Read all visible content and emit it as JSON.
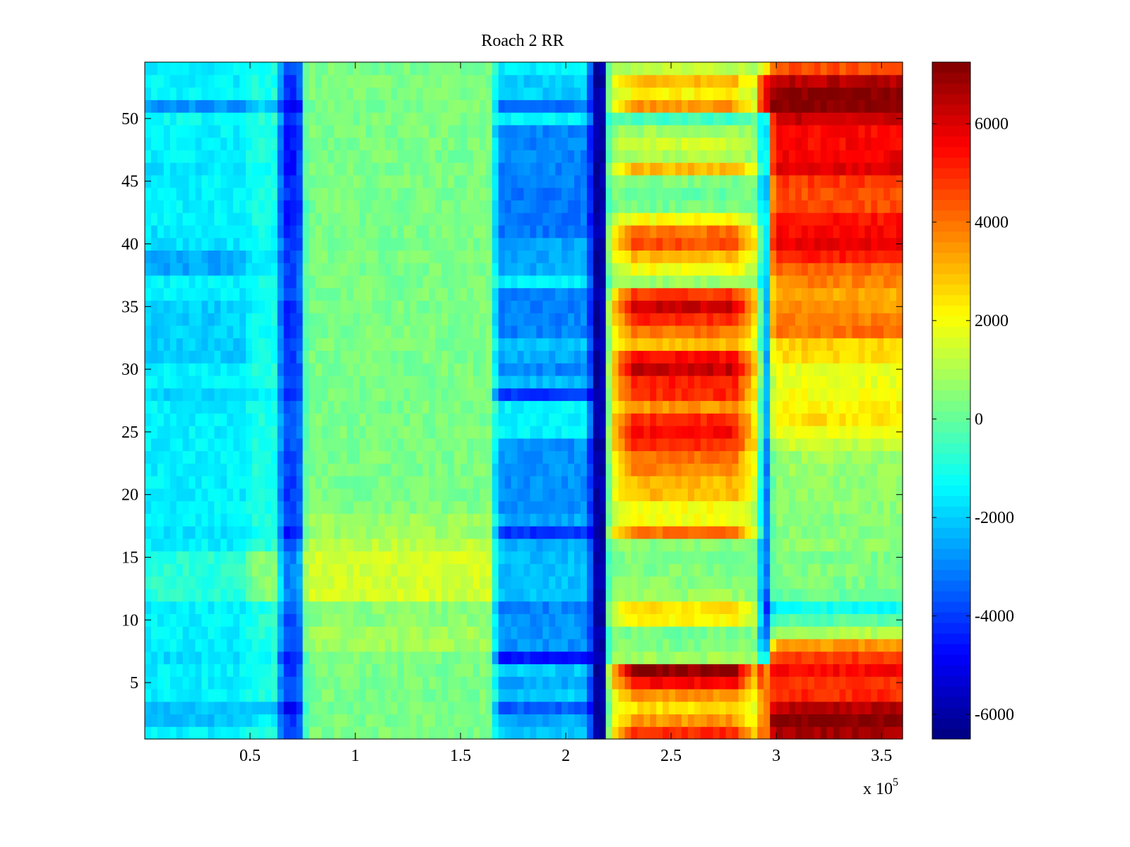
{
  "chart_data": {
    "type": "heatmap",
    "title": "Roach 2 RR",
    "xlabel": "",
    "ylabel": "",
    "x_multiplier": "x 10",
    "x_exponent": "5",
    "xlim": [
      0,
      3.6
    ],
    "ylim": [
      0.5,
      54.5
    ],
    "clim": [
      -6500,
      7250
    ],
    "colormap": "jet",
    "x_ticks": [
      0.5,
      1,
      1.5,
      2,
      2.5,
      3,
      3.5
    ],
    "x_tick_labels": [
      "0.5",
      "1",
      "1.5",
      "2",
      "2.5",
      "3",
      "3.5"
    ],
    "y_ticks": [
      5,
      10,
      15,
      20,
      25,
      30,
      35,
      40,
      45,
      50
    ],
    "y_tick_labels": [
      "5",
      "10",
      "15",
      "20",
      "25",
      "30",
      "35",
      "40",
      "45",
      "50"
    ],
    "colorbar_ticks": [
      -6000,
      -4000,
      -2000,
      0,
      2000,
      4000,
      6000
    ],
    "colorbar_tick_labels": [
      "-6000",
      "-4000",
      "-2000",
      "0",
      "2000",
      "4000",
      "6000"
    ],
    "rows": 54,
    "x_segments_1e5": [
      {
        "name": "left",
        "from": 0,
        "to": 0.49
      },
      {
        "name": "light",
        "from": 0.49,
        "to": 0.64
      },
      {
        "name": "band1",
        "from": 0.64,
        "to": 0.75
      },
      {
        "name": "mid",
        "from": 0.75,
        "to": 1.66
      },
      {
        "name": "pre",
        "from": 1.66,
        "to": 2.12
      },
      {
        "name": "band2",
        "from": 2.12,
        "to": 2.2
      },
      {
        "name": "warm",
        "from": 2.2,
        "to": 2.92
      },
      {
        "name": "band3",
        "from": 2.92,
        "to": 2.97
      },
      {
        "name": "right",
        "from": 2.97,
        "to": 3.6
      }
    ],
    "row_values": {
      "left": [
        -1500,
        -2200,
        -2200,
        -1500,
        -1500,
        -1500,
        -1800,
        -1500,
        -1500,
        -1500,
        -1500,
        -800,
        -800,
        -800,
        -800,
        -1500,
        -1700,
        -1500,
        -1500,
        -1500,
        -1500,
        -1500,
        -1500,
        -1500,
        -1500,
        -1500,
        -1500,
        -2000,
        -1500,
        -1500,
        -2000,
        -2000,
        -2000,
        -2000,
        -2000,
        -1500,
        -1500,
        -2500,
        -2500,
        -1700,
        -1700,
        -1500,
        -1500,
        -1500,
        -1500,
        -1700,
        -1500,
        -1500,
        -1500,
        -1300,
        -2800,
        -1500,
        -1500,
        -1500
      ],
      "light": [
        -1000,
        -1500,
        -2200,
        -1000,
        -1000,
        -1000,
        -1200,
        -1000,
        -800,
        -800,
        -1000,
        500,
        500,
        500,
        500,
        -800,
        -1200,
        -1000,
        -1000,
        -1000,
        -1000,
        -1000,
        -1000,
        -1000,
        -1000,
        -1000,
        -1000,
        -1500,
        -1000,
        -1000,
        -1200,
        -1200,
        -1200,
        -1200,
        -1200,
        -1000,
        -1000,
        -1500,
        -1500,
        -1200,
        -1200,
        -1000,
        -1000,
        -1000,
        -1000,
        -1200,
        -1000,
        -1000,
        -1000,
        -800,
        -2000,
        -1000,
        -1000,
        -1000
      ],
      "band1": [
        -4000,
        -4000,
        -5200,
        -4000,
        -4000,
        -4000,
        -4500,
        -3800,
        -3800,
        -3800,
        -3500,
        -3000,
        -3000,
        -3000,
        -3000,
        -3500,
        -4500,
        -3800,
        -3800,
        -4000,
        -4000,
        -3800,
        -3800,
        -3800,
        -3500,
        -3500,
        -3800,
        -4500,
        -4000,
        -4200,
        -4000,
        -4000,
        -4200,
        -4200,
        -4200,
        -4000,
        -3800,
        -4000,
        -4000,
        -4200,
        -4500,
        -4500,
        -4500,
        -4200,
        -4200,
        -4500,
        -4500,
        -4500,
        -4500,
        -4000,
        -5000,
        -4200,
        -4000,
        -3800
      ],
      "mid": [
        300,
        300,
        300,
        300,
        300,
        300,
        300,
        800,
        800,
        500,
        500,
        1500,
        1500,
        1500,
        1500,
        1200,
        800,
        800,
        400,
        300,
        300,
        300,
        300,
        300,
        300,
        300,
        300,
        300,
        300,
        300,
        300,
        300,
        300,
        300,
        300,
        300,
        300,
        300,
        300,
        300,
        300,
        300,
        300,
        300,
        300,
        300,
        300,
        300,
        300,
        300,
        300,
        300,
        300,
        300
      ],
      "pre": [
        -2000,
        -2500,
        -3500,
        -2000,
        -2500,
        -2000,
        -4500,
        -2800,
        -2800,
        -2800,
        -3000,
        -2200,
        -2200,
        -2200,
        -2200,
        -2500,
        -4200,
        -2500,
        -2800,
        -2800,
        -2800,
        -2800,
        -2800,
        -2800,
        -1500,
        -1500,
        -1500,
        -4000,
        -2200,
        -3000,
        -2500,
        -2200,
        -3000,
        -3000,
        -3000,
        -3000,
        -1500,
        -2500,
        -2500,
        -2500,
        -3200,
        -3200,
        -3200,
        -3200,
        -3000,
        -3000,
        -3000,
        -3000,
        -3000,
        -1500,
        -3200,
        -2000,
        -2000,
        -1500
      ],
      "band2": [
        -6000,
        -6000,
        -6000,
        -6000,
        -6000,
        -6000,
        -6000,
        -6000,
        -6000,
        -6000,
        -6000,
        -6000,
        -6000,
        -6000,
        -6000,
        -6000,
        -6000,
        -6000,
        -6000,
        -6000,
        -6000,
        -6000,
        -6000,
        -6000,
        -6000,
        -6000,
        -6000,
        -6000,
        -6000,
        -6000,
        -6000,
        -6000,
        -6000,
        -6000,
        -6000,
        -6000,
        -6000,
        -6000,
        -6000,
        -6000,
        -6000,
        -6000,
        -6000,
        -6000,
        -6000,
        -6000,
        -6000,
        -6000,
        -6000,
        -6000,
        -6000,
        -6000,
        -6000,
        -6000
      ],
      "warm": [
        5000,
        3500,
        2500,
        3500,
        5500,
        7000,
        800,
        300,
        200,
        2200,
        2500,
        700,
        500,
        400,
        300,
        500,
        4000,
        2000,
        2000,
        3000,
        3000,
        3800,
        4000,
        5000,
        5500,
        5000,
        3500,
        5000,
        5200,
        6300,
        5500,
        3000,
        4000,
        5000,
        6200,
        4800,
        800,
        2000,
        3000,
        4500,
        4000,
        2000,
        200,
        0,
        300,
        3000,
        1000,
        1500,
        800,
        -500,
        3500,
        2200,
        3000,
        1200
      ],
      "band3": [
        3500,
        3500,
        3500,
        3500,
        3500,
        3500,
        -2000,
        -3500,
        -3500,
        -4000,
        -4500,
        -4000,
        -3500,
        -3500,
        -3500,
        -3500,
        -3500,
        -3500,
        -3500,
        -3500,
        -3500,
        -3500,
        -3500,
        -3500,
        -3000,
        -3000,
        -3000,
        -3000,
        -3000,
        -3000,
        -3000,
        -3000,
        -3000,
        -3000,
        -3000,
        -3000,
        -3000,
        -2500,
        -2500,
        -2500,
        -2500,
        -2500,
        -2500,
        -3000,
        -3000,
        -2500,
        -2500,
        -2500,
        -2500,
        -2000,
        5500,
        5500,
        5500,
        2000
      ],
      "right": [
        6800,
        7200,
        6500,
        5000,
        4800,
        5500,
        4800,
        3500,
        1000,
        -200,
        -1200,
        0,
        300,
        400,
        300,
        600,
        500,
        500,
        600,
        600,
        600,
        700,
        800,
        1300,
        2000,
        2500,
        2200,
        2000,
        1800,
        1800,
        2500,
        2700,
        4000,
        3800,
        3500,
        3200,
        3800,
        4200,
        5200,
        5800,
        5500,
        5300,
        4500,
        4500,
        4800,
        6000,
        5700,
        5500,
        5500,
        6300,
        7200,
        7200,
        6500,
        4500
      ]
    }
  }
}
